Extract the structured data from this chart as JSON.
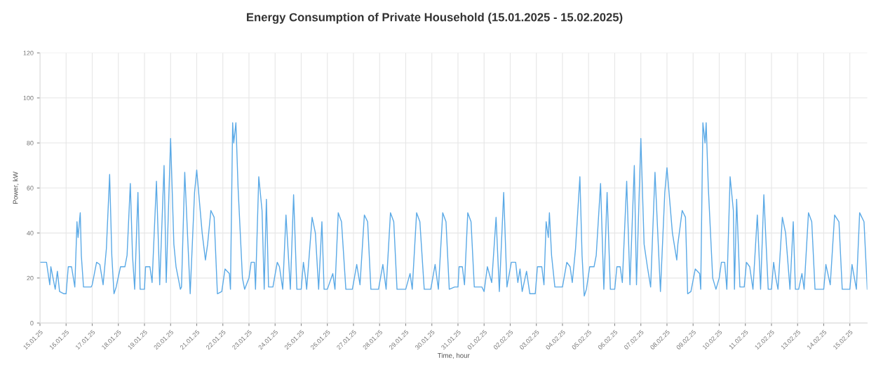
{
  "chart_data": {
    "type": "line",
    "title": "Energy Consumption of Private Household (15.01.2025 - 15.02.2025)",
    "xlabel": "Time, hour",
    "ylabel": "Power, kW",
    "ylim": [
      0,
      120
    ],
    "yticks": [
      0,
      20,
      40,
      60,
      80,
      100,
      120
    ],
    "xlim": [
      "2025-01-15T00:00",
      "2025-02-15T16:00"
    ],
    "xticks": [
      {
        "value": "2025-01-15",
        "label": "15.01.25"
      },
      {
        "value": "2025-01-16",
        "label": "16.01.25"
      },
      {
        "value": "2025-01-17",
        "label": "17.01.25"
      },
      {
        "value": "2025-01-18",
        "label": "18.01.25"
      },
      {
        "value": "2025-01-19",
        "label": "19.01.25"
      },
      {
        "value": "2025-01-20",
        "label": "20.01.25"
      },
      {
        "value": "2025-01-21",
        "label": "21.01.25"
      },
      {
        "value": "2025-01-22",
        "label": "22.01.25"
      },
      {
        "value": "2025-01-23",
        "label": "23.01.25"
      },
      {
        "value": "2025-01-24",
        "label": "24.01.25"
      },
      {
        "value": "2025-01-25",
        "label": "25.01.25"
      },
      {
        "value": "2025-01-26",
        "label": "26.01.25"
      },
      {
        "value": "2025-01-27",
        "label": "27.01.25"
      },
      {
        "value": "2025-01-28",
        "label": "28.01.25"
      },
      {
        "value": "2025-01-29",
        "label": "29.01.25"
      },
      {
        "value": "2025-01-30",
        "label": "30.01.25"
      },
      {
        "value": "2025-01-31",
        "label": "31.01.25"
      },
      {
        "value": "2025-02-01",
        "label": "01.02.25"
      },
      {
        "value": "2025-02-02",
        "label": "02.02.25"
      },
      {
        "value": "2025-02-03",
        "label": "03.02.25"
      },
      {
        "value": "2025-02-04",
        "label": "04.02.25"
      },
      {
        "value": "2025-02-05",
        "label": "05.02.25"
      },
      {
        "value": "2025-02-06",
        "label": "06.02.25"
      },
      {
        "value": "2025-02-07",
        "label": "07.02.25"
      },
      {
        "value": "2025-02-08",
        "label": "08.02.25"
      },
      {
        "value": "2025-02-09",
        "label": "09.02.25"
      },
      {
        "value": "2025-02-10",
        "label": "10.02.25"
      },
      {
        "value": "2025-02-11",
        "label": "11.02.25"
      },
      {
        "value": "2025-02-12",
        "label": "12.02.25"
      },
      {
        "value": "2025-02-13",
        "label": "13.02.25"
      },
      {
        "value": "2025-02-14",
        "label": "14.02.25"
      },
      {
        "value": "2025-02-15",
        "label": "15.02.25"
      }
    ],
    "grid": true,
    "marker": "none",
    "line_style": "solid",
    "series": [
      {
        "color": "#5aa9e6",
        "x": [
          "2025-01-15T00:00",
          "2025-01-15T06:00",
          "2025-01-15T09:00",
          "2025-01-15T10:00",
          "2025-01-15T14:00",
          "2025-01-15T16:00",
          "2025-01-15T18:00",
          "2025-01-15T22:00",
          "2025-01-16T00:00",
          "2025-01-16T02:00",
          "2025-01-16T05:00",
          "2025-01-16T08:00",
          "2025-01-16T10:00",
          "2025-01-16T11:00",
          "2025-01-16T13:00",
          "2025-01-16T14:00",
          "2025-01-16T16:00",
          "2025-01-16T23:00",
          "2025-01-17T00:00",
          "2025-01-17T04:00",
          "2025-01-17T07:00",
          "2025-01-17T10:00",
          "2025-01-17T13:00",
          "2025-01-17T16:00",
          "2025-01-17T18:00",
          "2025-01-17T20:00",
          "2025-01-17T22:00",
          "2025-01-18T02:00",
          "2025-01-18T06:00",
          "2025-01-18T08:00",
          "2025-01-18T11:00",
          "2025-01-18T13:00",
          "2025-01-18T15:00",
          "2025-01-18T18:00",
          "2025-01-18T20:00",
          "2025-01-19T00:00",
          "2025-01-19T01:00",
          "2025-01-19T05:00",
          "2025-01-19T07:00",
          "2025-01-19T11:00",
          "2025-01-19T14:00",
          "2025-01-19T18:00",
          "2025-01-19T20:00",
          "2025-01-20T00:00",
          "2025-01-20T03:00",
          "2025-01-20T05:00",
          "2025-01-20T09:00",
          "2025-01-20T10:00",
          "2025-01-20T13:00",
          "2025-01-20T18:00",
          "2025-01-20T22:00",
          "2025-01-21T00:00",
          "2025-01-21T05:00",
          "2025-01-21T08:00",
          "2025-01-21T10:00",
          "2025-01-21T13:00",
          "2025-01-21T16:00",
          "2025-01-21T19:00",
          "2025-01-21T23:00",
          "2025-01-22T02:00",
          "2025-01-22T06:00",
          "2025-01-22T07:00",
          "2025-01-22T09:00",
          "2025-01-22T10:00",
          "2025-01-22T12:00",
          "2025-01-22T14:00",
          "2025-01-22T18:00",
          "2025-01-22T20:00",
          "2025-01-23T00:00",
          "2025-01-23T02:00",
          "2025-01-23T05:00",
          "2025-01-23T06:00",
          "2025-01-23T09:00",
          "2025-01-23T12:00",
          "2025-01-23T14:00",
          "2025-01-23T16:00",
          "2025-01-23T18:00",
          "2025-01-23T22:00",
          "2025-01-24T02:00",
          "2025-01-24T04:00",
          "2025-01-24T07:00",
          "2025-01-24T10:00",
          "2025-01-24T14:00",
          "2025-01-24T17:00",
          "2025-01-24T20:00",
          "2025-01-25T00:00",
          "2025-01-25T02:00",
          "2025-01-25T04:00",
          "2025-01-25T05:00",
          "2025-01-25T10:00",
          "2025-01-25T13:00",
          "2025-01-25T16:00",
          "2025-01-25T19:00",
          "2025-01-25T21:00",
          "2025-01-26T00:00",
          "2025-01-26T05:00",
          "2025-01-26T07:00",
          "2025-01-26T10:00",
          "2025-01-26T13:00",
          "2025-01-26T17:00",
          "2025-01-26T23:00",
          "2025-01-27T03:00",
          "2025-01-27T06:00",
          "2025-01-27T10:00",
          "2025-01-27T13:00",
          "2025-01-27T16:00",
          "2025-01-27T23:00",
          "2025-01-28T03:00",
          "2025-01-28T06:00",
          "2025-01-28T10:00",
          "2025-01-28T13:00",
          "2025-01-28T16:00",
          "2025-01-29T00:00",
          "2025-01-29T04:00",
          "2025-01-29T06:00",
          "2025-01-29T10:00",
          "2025-01-29T13:00",
          "2025-01-29T17:00",
          "2025-01-29T23:00",
          "2025-01-30T03:00",
          "2025-01-30T06:00",
          "2025-01-30T10:00",
          "2025-01-30T13:00",
          "2025-01-30T16:00",
          "2025-01-30T21:00",
          "2025-01-31T00:00",
          "2025-01-31T01:00",
          "2025-01-31T04:00",
          "2025-01-31T06:00",
          "2025-01-31T09:00",
          "2025-01-31T12:00",
          "2025-01-31T15:00",
          "2025-01-31T22:00",
          "2025-02-01T00:00",
          "2025-02-01T03:00",
          "2025-02-01T07:00",
          "2025-02-01T11:00",
          "2025-02-01T14:00",
          "2025-02-01T18:00",
          "2025-02-01T21:00",
          "2025-02-02T01:00",
          "2025-02-02T05:00",
          "2025-02-02T07:00",
          "2025-02-02T09:00",
          "2025-02-02T11:00",
          "2025-02-02T15:00",
          "2025-02-02T18:00",
          "2025-02-02T23:00",
          "2025-02-03T01:00",
          "2025-02-03T05:00",
          "2025-02-03T07:00",
          "2025-02-03T09:00",
          "2025-02-03T11:00",
          "2025-02-03T12:00",
          "2025-02-03T14:00",
          "2025-02-03T17:00",
          "2025-02-04T00:00",
          "2025-02-04T04:00",
          "2025-02-04T07:00",
          "2025-02-04T09:00",
          "2025-02-04T12:00",
          "2025-02-04T16:00",
          "2025-02-04T18:00",
          "2025-02-04T20:00",
          "2025-02-04T22:00",
          "2025-02-05T01:00",
          "2025-02-05T05:00",
          "2025-02-05T07:00",
          "2025-02-05T11:00",
          "2025-02-05T14:00",
          "2025-02-05T17:00",
          "2025-02-05T20:00",
          "2025-02-06T00:00",
          "2025-02-06T02:00",
          "2025-02-06T05:00",
          "2025-02-06T07:00",
          "2025-02-06T11:00",
          "2025-02-06T14:00",
          "2025-02-06T18:00",
          "2025-02-06T20:00",
          "2025-02-07T00:00",
          "2025-02-07T03:00",
          "2025-02-07T06:00",
          "2025-02-07T09:00",
          "2025-02-07T13:00",
          "2025-02-07T18:00",
          "2025-02-07T22:00",
          "2025-02-08T00:00",
          "2025-02-08T05:00",
          "2025-02-08T09:00",
          "2025-02-08T10:00",
          "2025-02-08T14:00",
          "2025-02-08T17:00",
          "2025-02-08T19:00",
          "2025-02-08T22:00",
          "2025-02-09T02:00",
          "2025-02-09T06:00",
          "2025-02-09T07:00",
          "2025-02-09T09:00",
          "2025-02-09T11:00",
          "2025-02-09T12:00",
          "2025-02-09T14:00",
          "2025-02-09T18:00",
          "2025-02-09T21:00",
          "2025-02-10T00:00",
          "2025-02-10T02:00",
          "2025-02-10T05:00",
          "2025-02-10T07:00",
          "2025-02-10T10:00",
          "2025-02-10T13:00",
          "2025-02-10T14:00",
          "2025-02-10T16:00",
          "2025-02-10T19:00",
          "2025-02-10T23:00",
          "2025-02-11T01:00",
          "2025-02-11T04:00",
          "2025-02-11T07:00",
          "2025-02-11T11:00",
          "2025-02-11T14:00",
          "2025-02-11T17:00",
          "2025-02-11T21:00",
          "2025-02-12T00:00",
          "2025-02-12T02:00",
          "2025-02-12T04:00",
          "2025-02-12T06:00",
          "2025-02-12T10:00",
          "2025-02-12T13:00",
          "2025-02-12T17:00",
          "2025-02-12T20:00",
          "2025-02-12T22:00",
          "2025-02-13T01:00",
          "2025-02-13T04:00",
          "2025-02-13T06:00",
          "2025-02-13T10:00",
          "2025-02-13T13:00",
          "2025-02-13T16:00",
          "2025-02-14T00:00",
          "2025-02-14T02:00",
          "2025-02-14T06:00",
          "2025-02-14T10:00",
          "2025-02-14T14:00",
          "2025-02-14T17:00",
          "2025-02-15T00:00",
          "2025-02-15T02:00",
          "2025-02-15T06:00",
          "2025-02-15T09:00",
          "2025-02-15T13:00",
          "2025-02-15T16:00"
        ],
        "values": [
          27,
          27,
          17,
          25,
          15,
          23,
          14,
          13,
          13,
          25,
          25,
          16,
          45,
          38,
          49,
          30,
          16,
          16,
          17,
          27,
          26,
          17,
          33,
          66,
          30,
          13,
          16,
          25,
          25,
          30,
          62,
          30,
          15,
          58,
          15,
          15,
          25,
          25,
          18,
          63,
          17,
          70,
          18,
          82,
          35,
          25,
          15,
          16,
          67,
          13,
          58,
          68,
          40,
          28,
          35,
          50,
          47,
          13,
          14,
          24,
          22,
          15,
          89,
          80,
          89,
          60,
          20,
          15,
          20,
          27,
          27,
          15,
          65,
          50,
          15,
          55,
          16,
          16,
          27,
          25,
          15,
          48,
          15,
          57,
          15,
          15,
          27,
          20,
          15,
          47,
          40,
          15,
          45,
          15,
          15,
          22,
          15,
          49,
          45,
          15,
          15,
          26,
          17,
          48,
          45,
          15,
          15,
          26,
          15,
          49,
          45,
          15,
          15,
          22,
          15,
          49,
          45,
          15,
          15,
          26,
          15,
          49,
          45,
          15,
          16,
          16,
          25,
          25,
          17,
          49,
          45,
          16,
          16,
          14,
          25,
          18,
          47,
          14,
          58,
          16,
          27,
          27,
          18,
          24,
          14,
          23,
          13,
          13,
          25,
          25,
          17,
          45,
          38,
          49,
          30,
          16,
          16,
          27,
          25,
          18,
          33,
          65,
          30,
          12,
          15,
          25,
          25,
          30,
          62,
          15,
          58,
          15,
          15,
          25,
          25,
          18,
          63,
          17,
          70,
          17,
          82,
          35,
          25,
          16,
          67,
          14,
          58,
          69,
          40,
          28,
          35,
          50,
          47,
          13,
          14,
          24,
          22,
          15,
          89,
          80,
          89,
          60,
          20,
          15,
          20,
          27,
          27,
          15,
          65,
          50,
          15,
          55,
          16,
          16,
          27,
          25,
          15,
          48,
          15,
          57,
          15,
          15,
          27,
          20,
          15,
          47,
          40,
          15,
          45,
          15,
          15,
          22,
          15,
          49,
          45,
          15,
          15,
          26,
          17,
          48,
          45,
          15,
          15,
          26,
          15,
          49,
          45,
          15
        ]
      }
    ]
  }
}
